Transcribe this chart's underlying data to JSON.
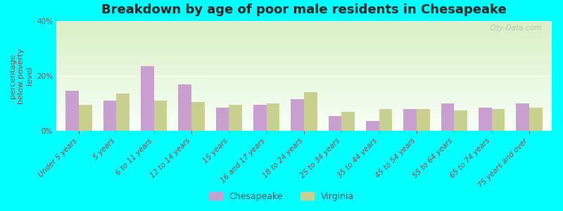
{
  "title": "Breakdown by age of poor male residents in Chesapeake",
  "ylabel": "percentage\nbelow poverty\nlevel",
  "categories": [
    "Under 5 years",
    "5 years",
    "6 to 11 years",
    "12 to 14 years",
    "15 years",
    "16 and 17 years",
    "18 to 24 years",
    "25 to 34 years",
    "35 to 44 years",
    "45 to 54 years",
    "55 to 64 years",
    "65 to 74 years",
    "75 years and over"
  ],
  "chesapeake": [
    14.5,
    11.0,
    23.5,
    17.0,
    8.5,
    9.5,
    11.5,
    5.5,
    3.5,
    8.0,
    10.0,
    8.5,
    10.0
  ],
  "virginia": [
    9.5,
    13.5,
    11.0,
    10.5,
    9.5,
    10.0,
    14.0,
    7.0,
    8.0,
    8.0,
    7.5,
    8.0,
    8.5
  ],
  "chesapeake_color": "#c8a0d0",
  "virginia_color": "#c8d090",
  "outer_bg": "#00ffff",
  "ylim": [
    0,
    40
  ],
  "yticks": [
    0,
    20,
    40
  ],
  "ytick_labels": [
    "0%",
    "20%",
    "40%"
  ],
  "bar_width": 0.35,
  "title_fontsize": 13,
  "axis_label_fontsize": 8,
  "tick_fontsize": 7.5,
  "legend_fontsize": 9,
  "watermark": "City-Data.com"
}
